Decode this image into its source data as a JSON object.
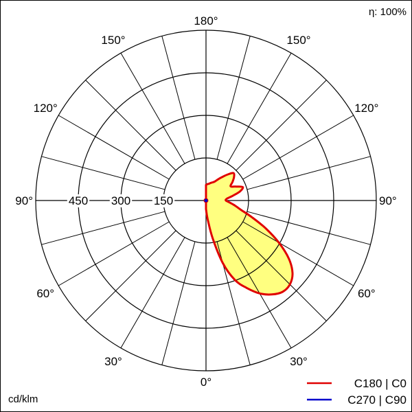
{
  "efficiency": "η: 100%",
  "unit": "cd/klm",
  "colors": {
    "grid": "#000000",
    "c0_line": "#e00000",
    "c90_line": "#0000cc",
    "fill": "#ffff80"
  },
  "legend": [
    {
      "label": "C180 | C0",
      "color": "#e00000"
    },
    {
      "label": "C270 | C90",
      "color": "#0000cc"
    }
  ],
  "chart_data": {
    "type": "polar-luminous-intensity",
    "radial_max": 600,
    "radial_ticks": [
      150,
      300,
      450
    ],
    "radial_tick_labels": [
      "150",
      "300",
      "450"
    ],
    "angle_labels": [
      {
        "text": "180°",
        "deg": 180,
        "side": "top"
      },
      {
        "text": "150°",
        "deg": 150,
        "side": "left"
      },
      {
        "text": "150°",
        "deg": 150,
        "side": "right"
      },
      {
        "text": "120°",
        "deg": 120,
        "side": "left"
      },
      {
        "text": "120°",
        "deg": 120,
        "side": "right"
      },
      {
        "text": "90°",
        "deg": 90,
        "side": "left"
      },
      {
        "text": "90°",
        "deg": 90,
        "side": "right"
      },
      {
        "text": "60°",
        "deg": 60,
        "side": "left"
      },
      {
        "text": "60°",
        "deg": 60,
        "side": "right"
      },
      {
        "text": "30°",
        "deg": 30,
        "side": "left"
      },
      {
        "text": "30°",
        "deg": 30,
        "side": "right"
      },
      {
        "text": "0°",
        "deg": 0,
        "side": "bottom"
      }
    ],
    "series": [
      {
        "name": "C180 | C0",
        "side": "right",
        "gamma": [
          0,
          5,
          10,
          15,
          20,
          25,
          30,
          35,
          40,
          45,
          50,
          55,
          60,
          65,
          70,
          75,
          80,
          85,
          90,
          95,
          100,
          105,
          110,
          115,
          120,
          125,
          130,
          135,
          140,
          145,
          150,
          155,
          160,
          165,
          170,
          175,
          180
        ],
        "intensity": [
          30,
          65,
          135,
          228,
          298,
          340,
          378,
          404,
          420,
          418,
          398,
          356,
          296,
          232,
          172,
          128,
          104,
          84,
          70,
          74,
          96,
          124,
          138,
          116,
          100,
          114,
          129,
          137,
          120,
          102,
          87,
          74,
          68,
          64,
          60,
          58,
          55
        ]
      },
      {
        "name": "C270 | C90",
        "side": "right",
        "gamma": [],
        "intensity": []
      }
    ]
  }
}
